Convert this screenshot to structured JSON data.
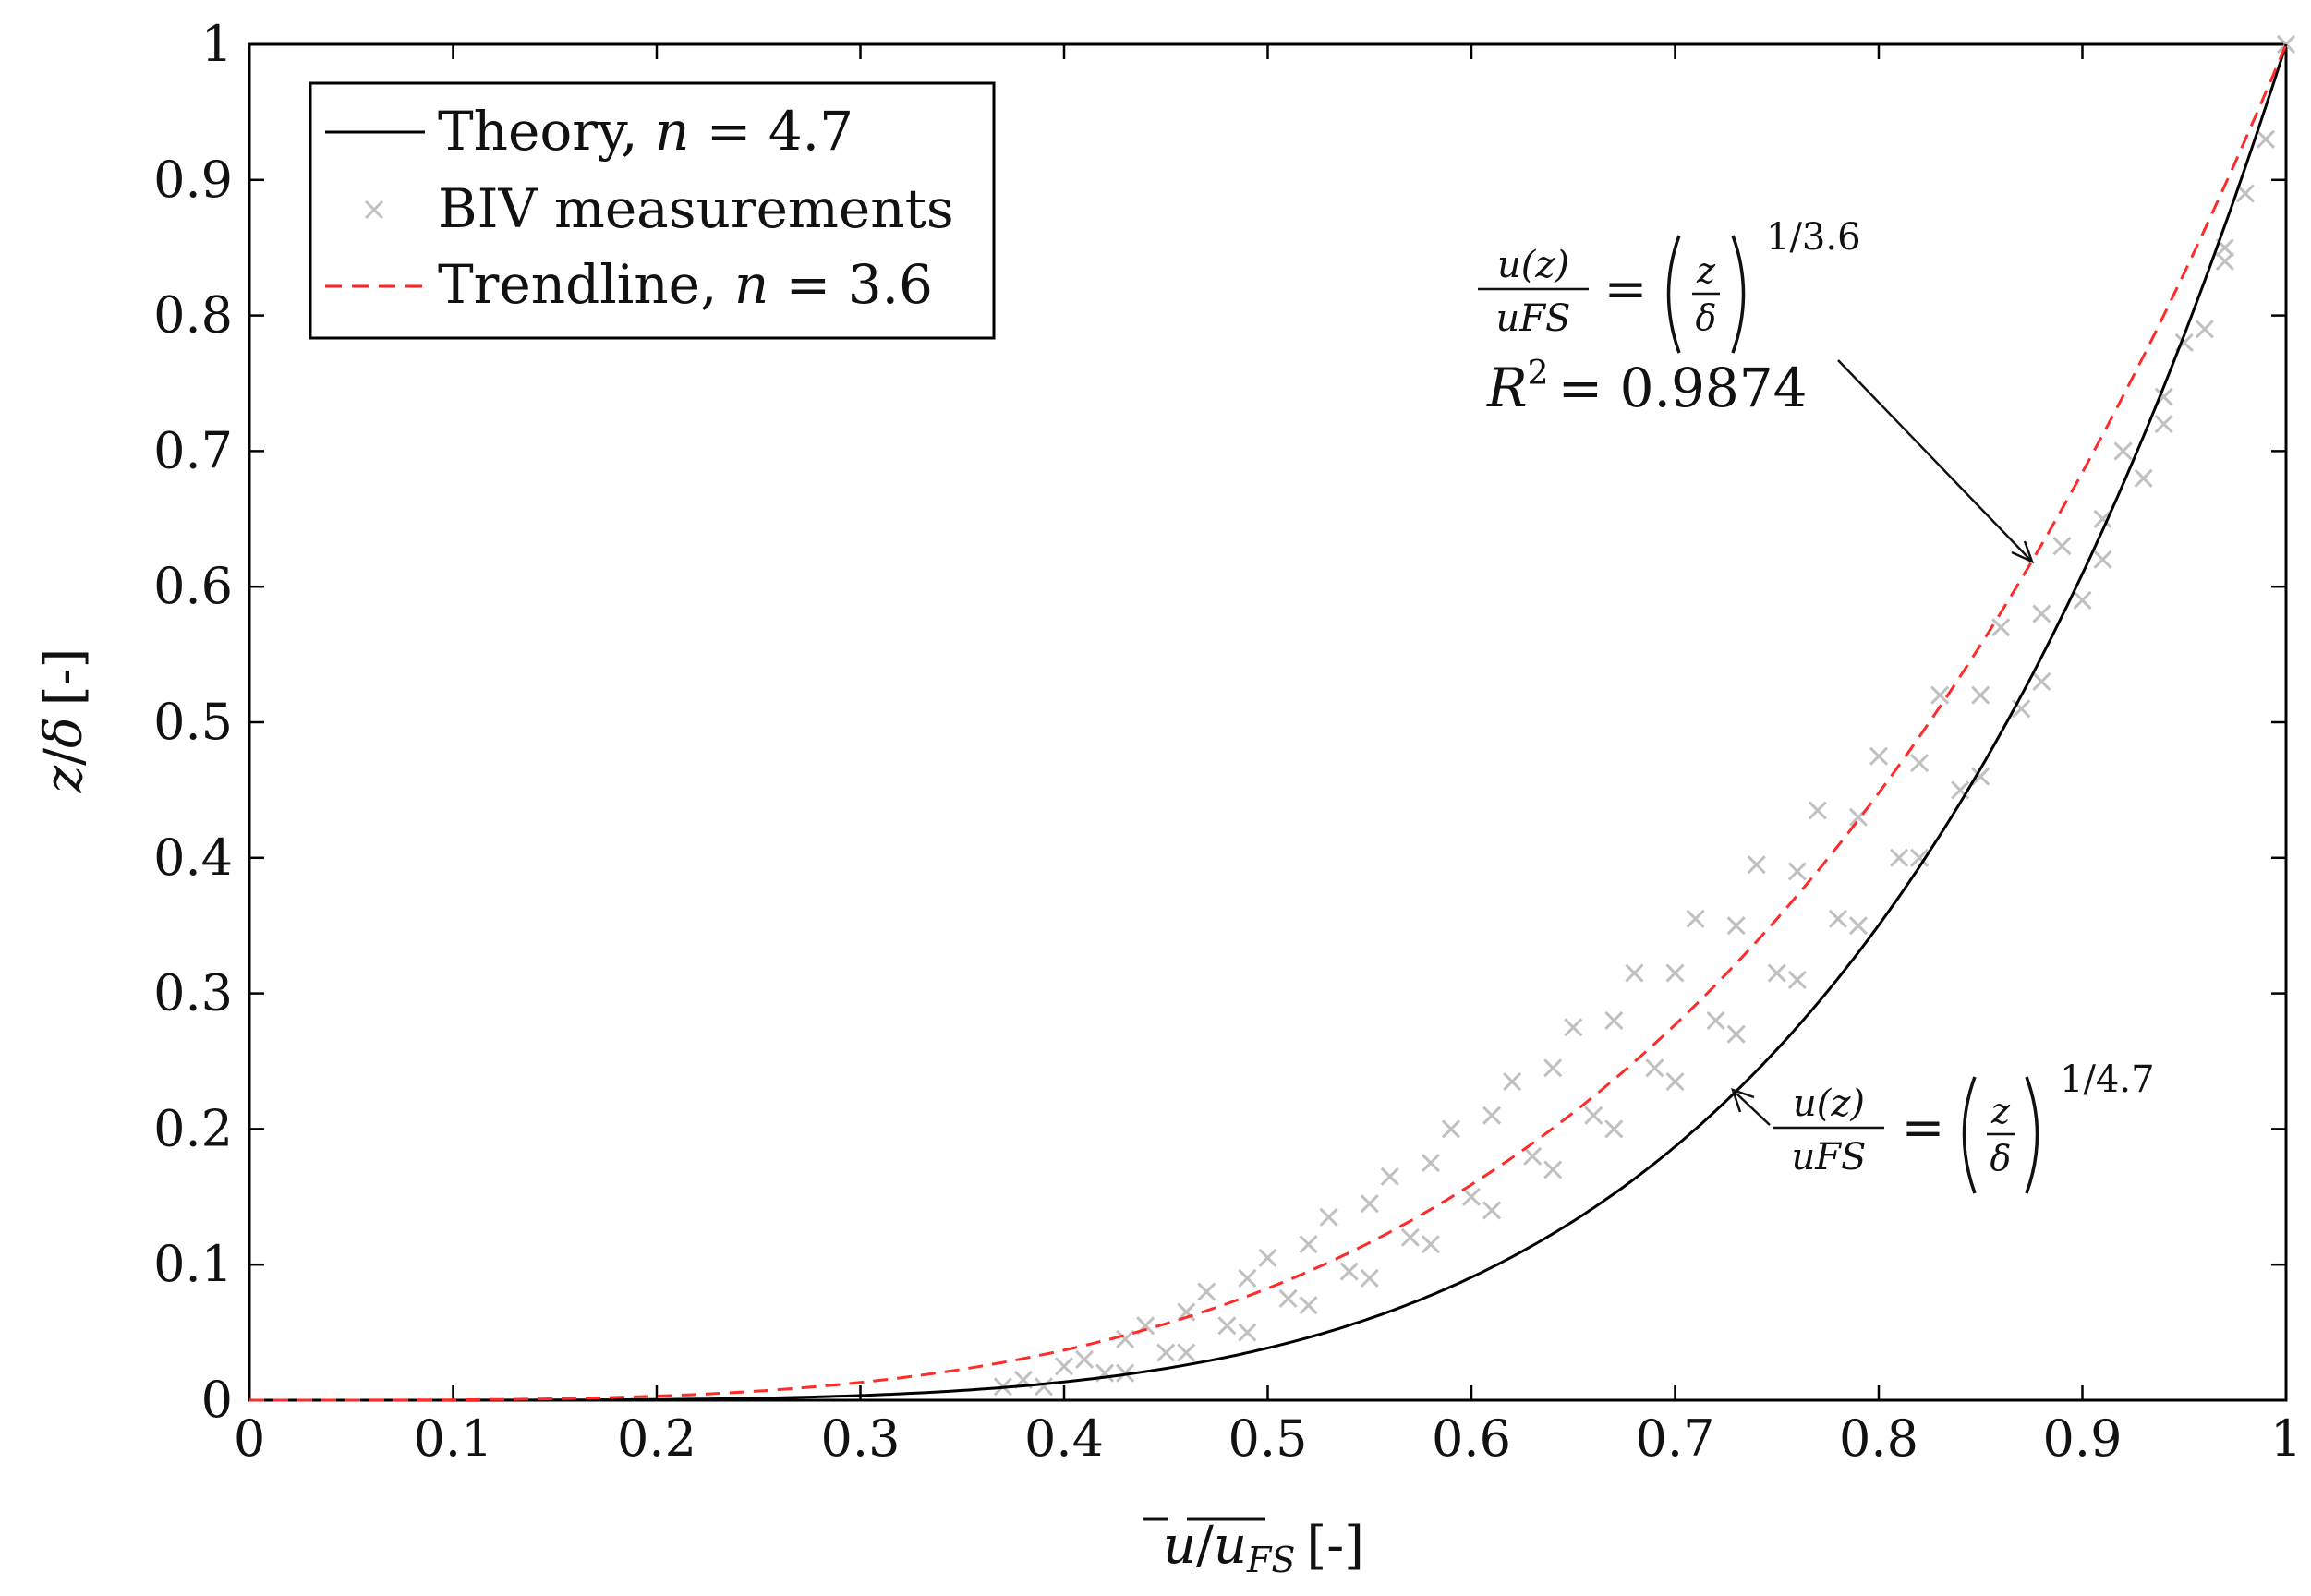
{
  "chart_data": {
    "type": "scatter",
    "title": "",
    "xlabel": "u̅/u̅FS [-]",
    "ylabel": "z/δ [-]",
    "xlim": [
      0,
      1
    ],
    "ylim": [
      0,
      1
    ],
    "x_ticks": [
      "0",
      "0.1",
      "0.2",
      "0.3",
      "0.4",
      "0.5",
      "0.6",
      "0.7",
      "0.8",
      "0.9",
      "1"
    ],
    "y_ticks": [
      "0",
      "0.1",
      "0.2",
      "0.3",
      "0.4",
      "0.5",
      "0.6",
      "0.7",
      "0.8",
      "0.9",
      "1"
    ],
    "grid": false,
    "legend_position": "top-left",
    "series": [
      {
        "name": "Theory, n = 4.7",
        "kind": "line",
        "style": "solid",
        "color": "#000000",
        "exponent": 4.7
      },
      {
        "name": "BIV measurements",
        "kind": "scatter",
        "marker": "x",
        "color": "#c0c0c0",
        "profiles": [
          {
            "label": "profile-1",
            "x": [
              0.38,
              0.41,
              0.44,
              0.47,
              0.5,
              0.53,
              0.56,
              0.59,
              0.62,
              0.65,
              0.68,
              0.71,
              0.74,
              0.77,
              0.8,
              0.83,
              0.86,
              0.89,
              0.92,
              0.95,
              0.98,
              1.0
            ],
            "y": [
              0.015,
              0.03,
              0.055,
              0.08,
              0.105,
              0.135,
              0.165,
              0.2,
              0.235,
              0.275,
              0.315,
              0.355,
              0.395,
              0.435,
              0.475,
              0.52,
              0.57,
              0.63,
              0.7,
              0.78,
              0.89,
              1.0
            ]
          },
          {
            "label": "profile-2",
            "x": [
              0.37,
              0.4,
              0.43,
              0.46,
              0.49,
              0.52,
              0.55,
              0.58,
              0.61,
              0.64,
              0.67,
              0.7,
              0.73,
              0.76,
              0.79,
              0.82,
              0.85,
              0.88,
              0.91,
              0.94,
              0.97,
              1.0
            ],
            "y": [
              0.01,
              0.025,
              0.045,
              0.065,
              0.09,
              0.115,
              0.145,
              0.175,
              0.21,
              0.245,
              0.28,
              0.315,
              0.35,
              0.39,
              0.43,
              0.47,
              0.52,
              0.58,
              0.65,
              0.74,
              0.85,
              1.0
            ]
          },
          {
            "label": "profile-3",
            "x": [
              0.39,
              0.42,
              0.45,
              0.48,
              0.51,
              0.54,
              0.57,
              0.6,
              0.63,
              0.66,
              0.69,
              0.72,
              0.75,
              0.78,
              0.81,
              0.84,
              0.87,
              0.9,
              0.93,
              0.96,
              0.99
            ],
            "y": [
              0.01,
              0.02,
              0.035,
              0.055,
              0.075,
              0.095,
              0.12,
              0.15,
              0.18,
              0.21,
              0.245,
              0.28,
              0.315,
              0.355,
              0.4,
              0.45,
              0.51,
              0.59,
              0.68,
              0.79,
              0.93
            ]
          },
          {
            "label": "profile-4",
            "x": [
              0.43,
              0.46,
              0.49,
              0.52,
              0.55,
              0.58,
              0.61,
              0.64,
              0.67,
              0.7,
              0.73,
              0.76,
              0.79,
              0.82,
              0.85,
              0.88,
              0.91,
              0.94,
              0.97
            ],
            "y": [
              0.02,
              0.035,
              0.05,
              0.07,
              0.09,
              0.115,
              0.14,
              0.17,
              0.2,
              0.235,
              0.27,
              0.31,
              0.35,
              0.4,
              0.46,
              0.53,
              0.62,
              0.72,
              0.84
            ]
          }
        ]
      },
      {
        "name": "Trendline, n = 3.6",
        "kind": "line",
        "style": "dashed",
        "color": "#ff0000",
        "exponent": 3.6
      }
    ],
    "annotations": [
      {
        "text": "u(z)/uFS = (z/δ)^(1/3.6)",
        "r2": "R² = 0.9874",
        "points_to": [
          0.875,
          0.62
        ]
      },
      {
        "text": "u(z)/uFS = (z/δ)^(1/4.7)",
        "points_to": [
          0.73,
          0.225
        ]
      }
    ]
  },
  "legend": {
    "theory_prefix": "Theory,",
    "theory_var": "n",
    "theory_value": "= 4.7",
    "biv_label": "BIV measurements",
    "trend_prefix": "Trendline,",
    "trend_var": "n",
    "trend_value": "= 3.6"
  },
  "annotation_top": {
    "num": "u(z)",
    "den": "uFS",
    "eq": "=",
    "frac_num": "z",
    "frac_den": "δ",
    "exp": "1/3.6",
    "r2_label": "R",
    "r2_sup": "2",
    "r2_value": "= 0.9874"
  },
  "annotation_bottom": {
    "num": "u(z)",
    "den": "uFS",
    "eq": "=",
    "frac_num": "z",
    "frac_den": "δ",
    "exp": "1/4.7"
  },
  "axis_labels": {
    "x_u": "u",
    "x_slash": "/",
    "x_u2": "u",
    "x_sub": "FS",
    "x_unit": "[-]",
    "y_z": "z",
    "y_slash": "/",
    "y_delta": "δ",
    "y_unit": "[-]"
  }
}
